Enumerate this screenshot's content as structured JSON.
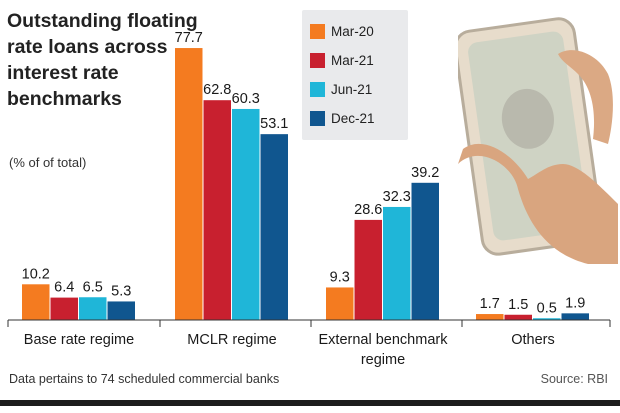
{
  "chart_data": {
    "type": "bar",
    "title": "Outstanding floating rate loans across interest rate benchmarks",
    "subtitle": "(% of of total)",
    "categories": [
      "Base rate regime",
      "MCLR regime",
      "External benchmark regime",
      "Others"
    ],
    "series": [
      {
        "name": "Mar-20",
        "color": "#f47b20",
        "values": [
          10.2,
          77.7,
          9.3,
          1.7
        ]
      },
      {
        "name": "Mar-21",
        "color": "#c8202f",
        "values": [
          6.4,
          62.8,
          28.6,
          1.5
        ]
      },
      {
        "name": "Jun-21",
        "color": "#1fb6d8",
        "values": [
          6.5,
          60.3,
          32.3,
          0.5
        ]
      },
      {
        "name": "Dec-21",
        "color": "#10568f",
        "values": [
          5.3,
          53.1,
          39.2,
          1.9
        ]
      }
    ],
    "ylim": [
      0,
      80
    ],
    "grid": false,
    "legend_placement": "top-center",
    "footnote": "Data pertains to 74 scheduled commercial banks",
    "source": "Source: RBI"
  }
}
